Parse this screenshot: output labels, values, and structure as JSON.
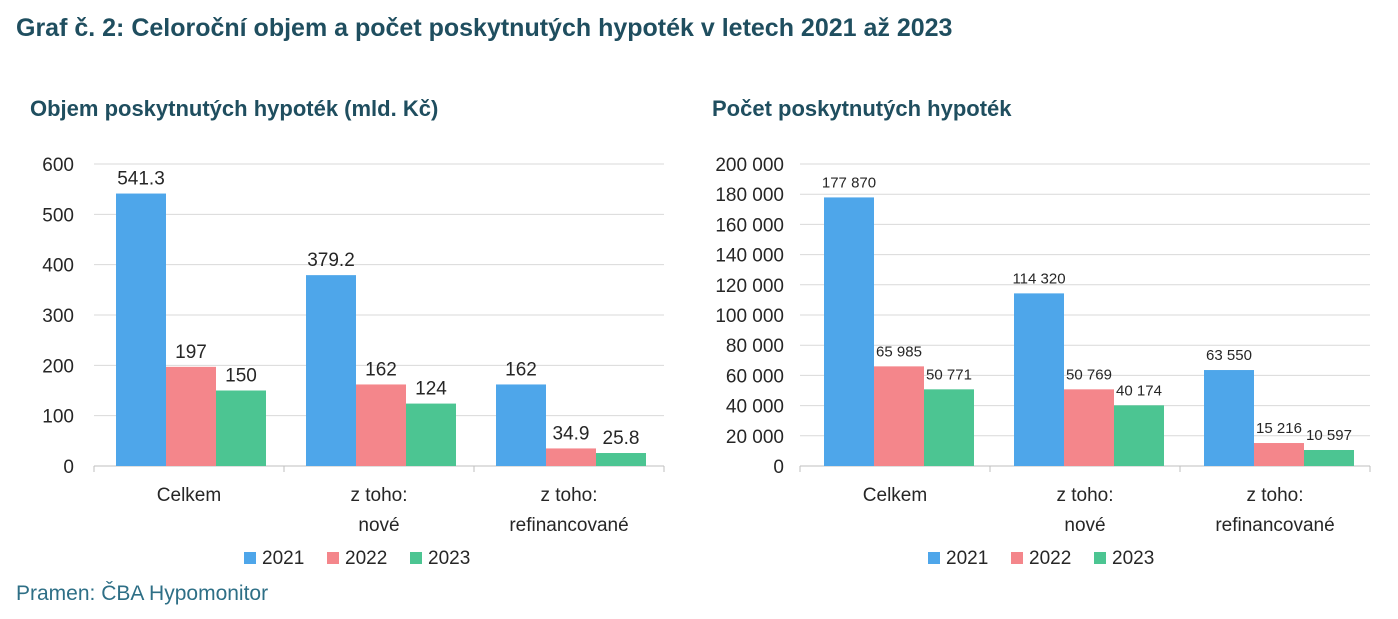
{
  "page": {
    "title": "Graf č. 2: Celoroční objem a počet poskytnutých hypoték v letech 2021 až 2023",
    "source": "Pramen: ČBA Hypomonitor"
  },
  "colors": {
    "2021": "#4ea6ea",
    "2022": "#f4868b",
    "2023": "#4cc592",
    "title": "#1f4e5f",
    "source": "#2e6f86",
    "grid": "#d9d9d9"
  },
  "chart_data": [
    {
      "type": "bar",
      "title": "Objem poskytnutých hypoték (mld. Kč)",
      "categories": [
        [
          "Celkem"
        ],
        [
          "z toho:",
          "nové"
        ],
        [
          "z toho:",
          "refinancované"
        ]
      ],
      "series": [
        {
          "name": "2021",
          "values": [
            541.3,
            379.2,
            162
          ],
          "labels": [
            "541.3",
            "379.2",
            "162"
          ]
        },
        {
          "name": "2022",
          "values": [
            197,
            162,
            34.9
          ],
          "labels": [
            "197",
            "162",
            "34.9"
          ]
        },
        {
          "name": "2023",
          "values": [
            150,
            124,
            25.8
          ],
          "labels": [
            "150",
            "124",
            "25.8"
          ]
        }
      ],
      "ylim": [
        0,
        600
      ],
      "yticks": [
        0,
        100,
        200,
        300,
        400,
        500,
        600
      ],
      "ytick_labels": [
        "0",
        "100",
        "200",
        "300",
        "400",
        "500",
        "600"
      ],
      "grid": true,
      "legend": "bottom"
    },
    {
      "type": "bar",
      "title": "Počet poskytnutých hypoték",
      "categories": [
        [
          "Celkem"
        ],
        [
          "z toho:",
          "nové"
        ],
        [
          "z toho:",
          "refinancované"
        ]
      ],
      "series": [
        {
          "name": "2021",
          "values": [
            177870,
            114320,
            63550
          ],
          "labels": [
            "177 870",
            "114 320",
            "63 550"
          ]
        },
        {
          "name": "2022",
          "values": [
            65985,
            50769,
            15216
          ],
          "labels": [
            "65 985",
            "50 769",
            "15 216"
          ]
        },
        {
          "name": "2023",
          "values": [
            50771,
            40174,
            10597
          ],
          "labels": [
            "50 771",
            "40 174",
            "10 597"
          ]
        }
      ],
      "ylim": [
        0,
        200000
      ],
      "yticks": [
        0,
        20000,
        40000,
        60000,
        80000,
        100000,
        120000,
        140000,
        160000,
        180000,
        200000
      ],
      "ytick_labels": [
        "0",
        "20 000",
        "40 000",
        "60 000",
        "80 000",
        "100 000",
        "120 000",
        "140 000",
        "160 000",
        "180 000",
        "200 000"
      ],
      "grid": true,
      "legend": "bottom"
    }
  ]
}
